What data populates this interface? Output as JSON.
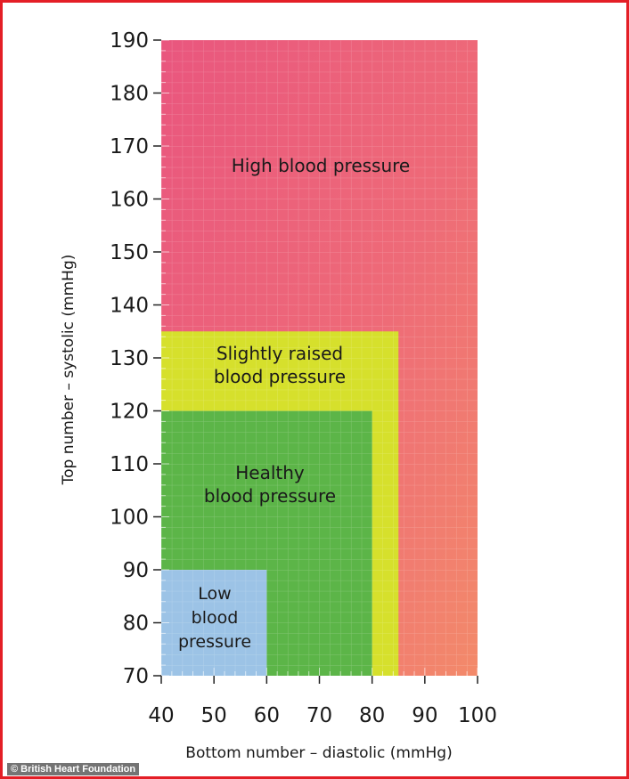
{
  "chart_data": {
    "type": "heatmap",
    "ylabel": "Top number – systolic (mmHg)",
    "xlabel": "Bottom number – diastolic (mmHg)",
    "xlim": [
      40,
      100
    ],
    "ylim": [
      70,
      190
    ],
    "x_ticks": [
      40,
      50,
      60,
      70,
      80,
      90,
      100
    ],
    "y_ticks": [
      70,
      80,
      90,
      100,
      110,
      120,
      130,
      140,
      150,
      160,
      170,
      180,
      190
    ],
    "grid": true,
    "regions": [
      {
        "name": "High blood pressure",
        "lines": [
          "High blood pressure"
        ],
        "x_max": 100,
        "y_max": 190,
        "color": "#ee6f7a"
      },
      {
        "name": "Slightly raised blood pressure",
        "lines": [
          "Slightly raised",
          "blood pressure"
        ],
        "x_max": 85,
        "y_max": 135,
        "color": "#d6e02c"
      },
      {
        "name": "Healthy blood pressure",
        "lines": [
          "Healthy",
          "blood pressure"
        ],
        "x_max": 80,
        "y_max": 120,
        "color": "#5cb548"
      },
      {
        "name": "Low blood pressure",
        "lines": [
          "Low",
          "blood",
          "pressure"
        ],
        "x_max": 60,
        "y_max": 90,
        "color": "#9cc3e6"
      }
    ]
  },
  "credit": "© British Heart Foundation"
}
